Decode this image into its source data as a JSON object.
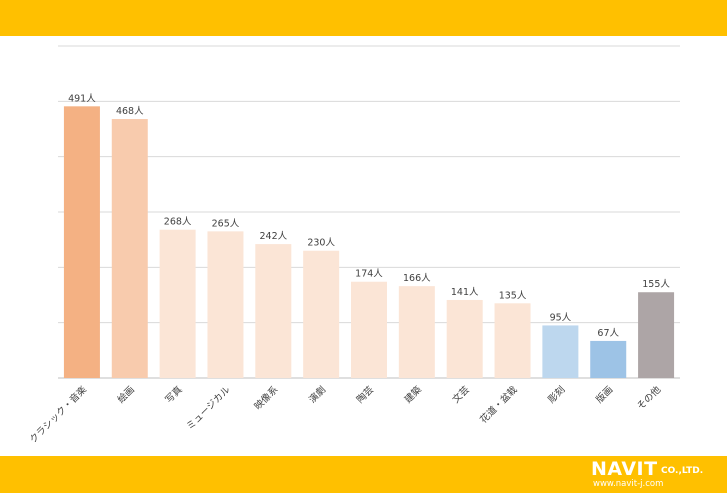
{
  "chart_data": {
    "type": "bar",
    "title": "",
    "xlabel": "",
    "ylabel": "",
    "categories": [
      "クラシック・音楽",
      "絵画",
      "写真",
      "ミュージカル",
      "映像系",
      "演劇",
      "陶芸",
      "建築",
      "文芸",
      "花道・盆栽",
      "彫刻",
      "版画",
      "その他"
    ],
    "values": [
      491,
      468,
      268,
      265,
      242,
      230,
      174,
      166,
      141,
      135,
      95,
      67,
      155
    ],
    "value_labels": [
      "491人",
      "468人",
      "268人",
      "265人",
      "242人",
      "230人",
      "174人",
      "166人",
      "141人",
      "135人",
      "95人",
      "67人",
      "155人"
    ],
    "colors": [
      "#F4B183",
      "#F8CBAD",
      "#FBE5D6",
      "#FBE5D6",
      "#FBE5D6",
      "#FBE5D6",
      "#FBE5D6",
      "#FBE5D6",
      "#FBE5D6",
      "#FBE5D6",
      "#BDD7EE",
      "#9DC3E6",
      "#ADA5A6"
    ],
    "ylim": [
      0,
      600
    ],
    "grid": true
  },
  "branding": {
    "logo_main": "NAVIT",
    "logo_company": "CO.,LTD.",
    "logo_url": "www.navit-j.com",
    "band_color": "#FFC000"
  }
}
